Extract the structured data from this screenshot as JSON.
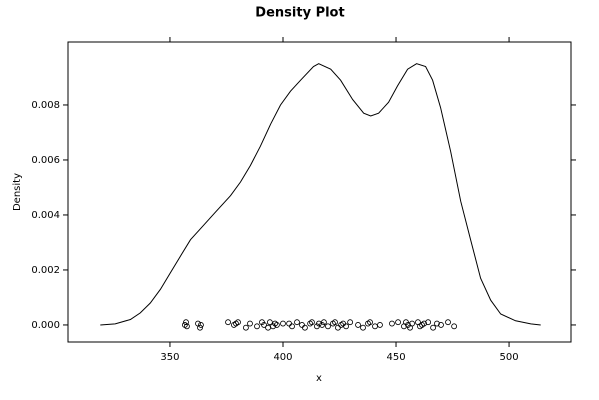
{
  "chart_data": {
    "type": "density",
    "title": "Density Plot",
    "x_label": "x",
    "y_label": "Density",
    "xlim": [
      304.9,
      527.4
    ],
    "ylim": [
      -0.00062,
      0.01029
    ],
    "xticks": [
      350,
      400,
      450,
      500
    ],
    "yticks": [
      {
        "value": 0,
        "label": "0.000"
      },
      {
        "value": 0.002,
        "label": "0.002"
      },
      {
        "value": 0.004,
        "label": "0.004"
      },
      {
        "value": 0.006,
        "label": "0.006"
      },
      {
        "value": 0.008,
        "label": "0.008"
      }
    ],
    "color": "#000000",
    "curve": {
      "x": [
        319.2,
        325.8,
        332.5,
        336.9,
        341.3,
        345.8,
        350.2,
        354.6,
        359.1,
        363.5,
        370.1,
        376.8,
        381.2,
        385.6,
        390.0,
        394.5,
        398.9,
        403.3,
        407.8,
        413.5,
        415.8,
        421.1,
        425.5,
        430.8,
        435.7,
        438.8,
        442.3,
        446.7,
        450.7,
        455.1,
        459.1,
        463.1,
        466.2,
        469.7,
        474.2,
        478.6,
        483.0,
        487.4,
        491.9,
        496.3,
        502.9,
        509.6,
        514.0
      ],
      "values": [
        0,
        4e-05,
        0.0002,
        0.00044,
        0.0008,
        0.0013,
        0.0019,
        0.0025,
        0.0031,
        0.0035,
        0.0041,
        0.0047,
        0.0052,
        0.0058,
        0.0065,
        0.0073,
        0.008,
        0.0085,
        0.0089,
        0.0094,
        0.0095,
        0.0093,
        0.0089,
        0.0082,
        0.0077,
        0.0076,
        0.0077,
        0.0081,
        0.0087,
        0.0093,
        0.0095,
        0.0094,
        0.0089,
        0.0079,
        0.0063,
        0.0045,
        0.0031,
        0.0017,
        0.0009,
        0.0004,
        0.00015,
        4e-05,
        0
      ]
    },
    "points": {
      "x": [
        356.6,
        357.1,
        357.5,
        362.4,
        363.3,
        363.7,
        375.7,
        378.3,
        379.2,
        380.1,
        383.6,
        385.4,
        388.5,
        390.7,
        391.6,
        393.4,
        394.2,
        395.6,
        396.5,
        397.3,
        400.0,
        402.7,
        404.0,
        406.2,
        408.4,
        409.7,
        412.0,
        412.8,
        415.0,
        415.9,
        417.3,
        418.1,
        419.9,
        422.1,
        423.0,
        424.3,
        425.7,
        426.6,
        427.9,
        429.7,
        433.2,
        435.4,
        437.6,
        438.5,
        440.7,
        442.9,
        448.2,
        450.9,
        453.5,
        454.4,
        455.3,
        456.2,
        457.1,
        459.7,
        460.6,
        461.5,
        462.4,
        464.2,
        466.4,
        468.1,
        469.9,
        473.0,
        475.7
      ],
      "values": [
        0,
        0.0001,
        -5e-05,
        5e-05,
        -0.0001,
        0,
        0.0001,
        0,
        5e-05,
        0.0001,
        -0.0001,
        5e-05,
        -5e-05,
        0.0001,
        0,
        -0.0001,
        0.0001,
        -5e-05,
        5e-05,
        0,
        5e-05,
        5e-05,
        -5e-05,
        0.0001,
        0,
        -0.0001,
        5e-05,
        0.0001,
        -5e-05,
        5e-05,
        0,
        0.0001,
        -5e-05,
        5e-05,
        0.0001,
        -0.0001,
        0,
        5e-05,
        -5e-05,
        0.0001,
        0,
        -0.0001,
        5e-05,
        0.0001,
        -5e-05,
        0,
        5e-05,
        0.0001,
        -5e-05,
        0.0001,
        0,
        -0.0001,
        5e-05,
        0.0001,
        -5e-05,
        0,
        5e-05,
        0.0001,
        -0.0001,
        5e-05,
        0,
        0.0001,
        -5e-05
      ]
    }
  }
}
